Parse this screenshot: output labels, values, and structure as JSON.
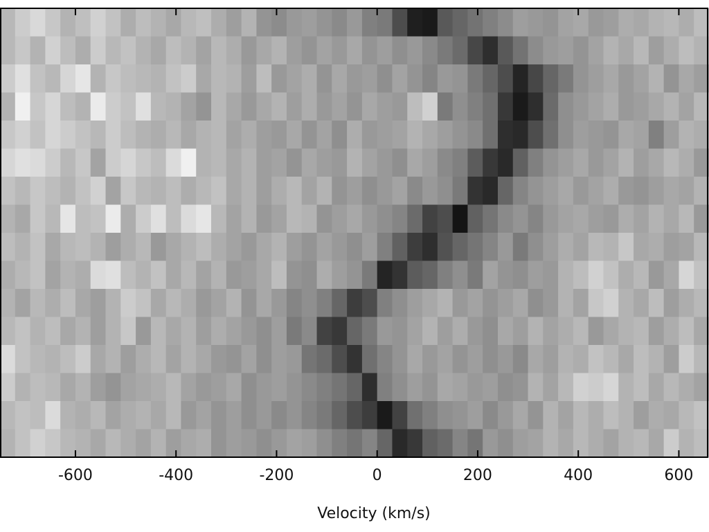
{
  "chart_data": {
    "type": "heatmap",
    "xlabel": "Velocity (km/s)",
    "xlim": [
      -750,
      660
    ],
    "xticks": [
      -600,
      -400,
      -200,
      0,
      200,
      400,
      600
    ],
    "colormap": "gray",
    "zlim": [
      0,
      100
    ],
    "z": [
      [
        72,
        80,
        85,
        78,
        70,
        75,
        82,
        76,
        68,
        74,
        70,
        66,
        72,
        75,
        68,
        62,
        70,
        58,
        55,
        60,
        62,
        58,
        54,
        60,
        50,
        48,
        30,
        12,
        10,
        35,
        40,
        45,
        50,
        55,
        62,
        60,
        58,
        64,
        66,
        60,
        62,
        68,
        66,
        70,
        72,
        68,
        74
      ],
      [
        72,
        78,
        70,
        82,
        74,
        68,
        80,
        72,
        76,
        70,
        66,
        74,
        70,
        64,
        72,
        68,
        60,
        66,
        70,
        62,
        58,
        64,
        60,
        66,
        58,
        62,
        56,
        60,
        54,
        48,
        42,
        28,
        18,
        35,
        45,
        55,
        60,
        62,
        58,
        64,
        70,
        66,
        72,
        62,
        68,
        74,
        70
      ],
      [
        80,
        88,
        76,
        72,
        84,
        90,
        70,
        78,
        74,
        72,
        70,
        76,
        80,
        66,
        72,
        70,
        62,
        74,
        60,
        64,
        68,
        58,
        66,
        60,
        62,
        56,
        64,
        58,
        52,
        60,
        58,
        48,
        40,
        30,
        14,
        28,
        40,
        48,
        58,
        62,
        66,
        60,
        64,
        70,
        58,
        66,
        62
      ],
      [
        70,
        94,
        78,
        84,
        74,
        70,
        92,
        80,
        76,
        88,
        72,
        70,
        64,
        58,
        72,
        66,
        60,
        66,
        70,
        62,
        68,
        60,
        64,
        58,
        66,
        62,
        60,
        74,
        82,
        48,
        56,
        50,
        44,
        22,
        10,
        18,
        42,
        56,
        60,
        64,
        68,
        60,
        62,
        66,
        70,
        64,
        72
      ],
      [
        78,
        82,
        76,
        84,
        80,
        76,
        72,
        80,
        74,
        70,
        68,
        72,
        66,
        70,
        72,
        64,
        68,
        62,
        60,
        66,
        58,
        64,
        56,
        68,
        60,
        62,
        64,
        70,
        66,
        62,
        58,
        54,
        44,
        18,
        16,
        30,
        44,
        56,
        62,
        60,
        58,
        66,
        64,
        50,
        62,
        70,
        68
      ],
      [
        84,
        88,
        86,
        80,
        72,
        78,
        64,
        80,
        84,
        78,
        74,
        86,
        94,
        70,
        72,
        66,
        70,
        62,
        64,
        58,
        66,
        62,
        60,
        70,
        64,
        60,
        56,
        66,
        62,
        54,
        50,
        36,
        22,
        16,
        38,
        50,
        58,
        62,
        66,
        60,
        64,
        70,
        62,
        66,
        72,
        68,
        60
      ],
      [
        76,
        72,
        78,
        74,
        70,
        76,
        82,
        64,
        78,
        72,
        70,
        74,
        68,
        72,
        76,
        66,
        70,
        62,
        68,
        72,
        64,
        70,
        58,
        62,
        56,
        60,
        64,
        54,
        60,
        56,
        48,
        20,
        16,
        40,
        52,
        58,
        62,
        66,
        60,
        64,
        68,
        60,
        58,
        62,
        66,
        64,
        70
      ],
      [
        70,
        66,
        78,
        72,
        90,
        74,
        76,
        92,
        68,
        80,
        88,
        74,
        86,
        90,
        72,
        64,
        70,
        60,
        64,
        72,
        70,
        58,
        62,
        66,
        60,
        56,
        52,
        42,
        26,
        30,
        8,
        38,
        46,
        54,
        58,
        52,
        60,
        64,
        66,
        62,
        60,
        68,
        64,
        70,
        66,
        72,
        60
      ],
      [
        74,
        70,
        76,
        66,
        72,
        74,
        70,
        62,
        68,
        72,
        60,
        66,
        70,
        74,
        68,
        64,
        60,
        66,
        70,
        62,
        58,
        64,
        60,
        56,
        62,
        50,
        38,
        24,
        18,
        32,
        40,
        46,
        52,
        60,
        48,
        56,
        62,
        68,
        64,
        72,
        70,
        78,
        66,
        68,
        62,
        64,
        72
      ],
      [
        68,
        72,
        76,
        64,
        70,
        68,
        86,
        88,
        74,
        70,
        76,
        66,
        72,
        64,
        70,
        60,
        62,
        66,
        74,
        58,
        56,
        68,
        62,
        58,
        48,
        14,
        20,
        36,
        40,
        50,
        56,
        48,
        64,
        58,
        56,
        62,
        60,
        70,
        74,
        82,
        76,
        68,
        72,
        60,
        66,
        84,
        76
      ],
      [
        70,
        64,
        72,
        68,
        74,
        66,
        62,
        70,
        80,
        76,
        66,
        72,
        68,
        60,
        64,
        70,
        58,
        66,
        60,
        52,
        56,
        50,
        40,
        24,
        30,
        50,
        56,
        62,
        66,
        70,
        60,
        64,
        58,
        62,
        66,
        56,
        60,
        70,
        64,
        78,
        82,
        70,
        66,
        74,
        62,
        68,
        72
      ],
      [
        72,
        76,
        70,
        74,
        66,
        70,
        62,
        70,
        78,
        60,
        72,
        66,
        70,
        62,
        68,
        64,
        60,
        56,
        62,
        48,
        54,
        26,
        22,
        40,
        48,
        60,
        58,
        64,
        70,
        62,
        68,
        60,
        56,
        66,
        62,
        70,
        64,
        68,
        72,
        60,
        66,
        70,
        72,
        62,
        68,
        74,
        66
      ],
      [
        86,
        76,
        72,
        70,
        74,
        80,
        66,
        70,
        62,
        68,
        72,
        64,
        70,
        66,
        60,
        58,
        64,
        56,
        62,
        60,
        46,
        42,
        30,
        20,
        44,
        52,
        58,
        66,
        60,
        64,
        58,
        62,
        56,
        60,
        54,
        66,
        62,
        70,
        68,
        76,
        72,
        66,
        74,
        70,
        62,
        80,
        72
      ],
      [
        80,
        70,
        74,
        72,
        66,
        70,
        62,
        58,
        64,
        66,
        68,
        72,
        64,
        60,
        62,
        66,
        56,
        60,
        62,
        58,
        54,
        50,
        46,
        40,
        18,
        50,
        56,
        62,
        58,
        66,
        64,
        60,
        62,
        56,
        58,
        70,
        64,
        72,
        82,
        80,
        84,
        70,
        74,
        66,
        72,
        68,
        64
      ],
      [
        72,
        76,
        74,
        86,
        70,
        68,
        72,
        64,
        68,
        70,
        66,
        72,
        60,
        64,
        58,
        62,
        56,
        60,
        54,
        58,
        52,
        48,
        40,
        30,
        24,
        10,
        26,
        44,
        50,
        56,
        58,
        62,
        54,
        60,
        66,
        58,
        70,
        64,
        72,
        68,
        74,
        70,
        62,
        68,
        66,
        72,
        76
      ],
      [
        70,
        76,
        82,
        78,
        72,
        70,
        66,
        72,
        68,
        64,
        70,
        62,
        66,
        68,
        58,
        62,
        60,
        56,
        60,
        64,
        62,
        56,
        50,
        46,
        52,
        40,
        16,
        22,
        38,
        42,
        52,
        46,
        60,
        56,
        62,
        64,
        70,
        66,
        72,
        68,
        64,
        70,
        72,
        66,
        80,
        70,
        74
      ]
    ]
  }
}
